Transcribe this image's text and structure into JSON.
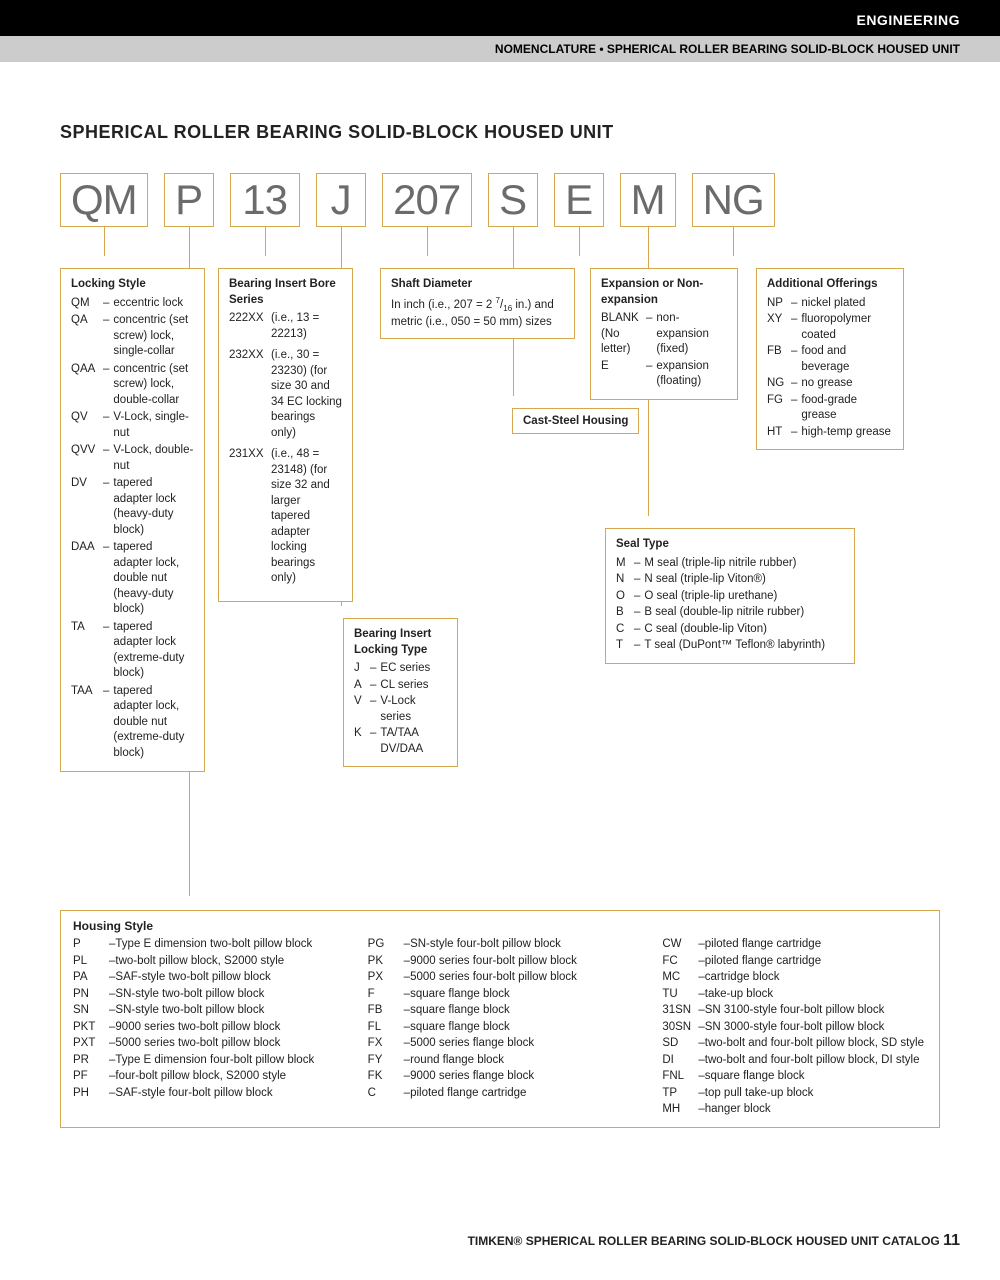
{
  "header": {
    "section": "ENGINEERING",
    "subtitle": "NOMENCLATURE • SPHERICAL ROLLER BEARING SOLID-BLOCK HOUSED UNIT"
  },
  "title": "SPHERICAL ROLLER BEARING SOLID-BLOCK HOUSED UNIT",
  "codes": [
    "QM",
    "P",
    "13",
    "J",
    "207",
    "S",
    "E",
    "M",
    "NG"
  ],
  "lockingStyle": {
    "heading": "Locking Style",
    "items": [
      {
        "c": "QM",
        "d": "eccentric lock"
      },
      {
        "c": "QA",
        "d": "concentric (set screw) lock, single-collar"
      },
      {
        "c": "QAA",
        "d": "concentric (set screw) lock, double-collar"
      },
      {
        "c": "QV",
        "d": "V-Lock, single-nut"
      },
      {
        "c": "QVV",
        "d": "V-Lock, double-nut"
      },
      {
        "c": "DV",
        "d": "tapered adapter lock (heavy-duty block)"
      },
      {
        "c": "DAA",
        "d": "tapered adapter lock, double nut (heavy-duty block)"
      },
      {
        "c": "TA",
        "d": "tapered adapter lock (extreme-duty block)"
      },
      {
        "c": "TAA",
        "d": "tapered adapter lock, double nut (extreme-duty block)"
      }
    ]
  },
  "bearingInsert": {
    "heading": "Bearing Insert Bore Series",
    "items": [
      {
        "c": "222XX",
        "d": "(i.e., 13 = 22213)"
      },
      {
        "c": "232XX",
        "d": "(i.e., 30 = 23230) (for size 30 and 34 EC locking bearings only)"
      },
      {
        "c": "231XX",
        "d": "(i.e., 48 = 23148) (for size 32 and larger tapered adapter locking bearings only)"
      }
    ]
  },
  "lockingType": {
    "heading": "Bearing Insert Locking Type",
    "items": [
      {
        "c": "J",
        "d": "EC series"
      },
      {
        "c": "A",
        "d": "CL series"
      },
      {
        "c": "V",
        "d": "V-Lock series"
      },
      {
        "c": "K",
        "d": "TA/TAA DV/DAA"
      }
    ]
  },
  "shaftDiameter": {
    "heading": "Shaft Diameter",
    "text1": "In inch (i.e., 207 = 2 ",
    "text2": " in.) and metric (i.e., 050 = 50 mm) sizes"
  },
  "castSteel": "Cast-Steel Housing",
  "expansion": {
    "heading": "Expansion or Non-expansion",
    "items": [
      {
        "c": "BLANK (No letter)",
        "d": "non-expansion (fixed)"
      },
      {
        "c": "E",
        "d": "expansion (floating)"
      }
    ]
  },
  "sealType": {
    "heading": "Seal Type",
    "items": [
      {
        "c": "M",
        "d": "M seal (triple-lip nitrile rubber)"
      },
      {
        "c": "N",
        "d": "N seal (triple-lip Viton®)"
      },
      {
        "c": "O",
        "d": "O seal (triple-lip urethane)"
      },
      {
        "c": "B",
        "d": "B seal (double-lip nitrile rubber)"
      },
      {
        "c": "C",
        "d": "C seal (double-lip Viton)"
      },
      {
        "c": "T",
        "d": "T seal (DuPont™ Teflon® labyrinth)"
      }
    ]
  },
  "additional": {
    "heading": "Additional Offerings",
    "items": [
      {
        "c": "NP",
        "d": "nickel plated"
      },
      {
        "c": "XY",
        "d": "fluoropolymer coated"
      },
      {
        "c": "FB",
        "d": "food and beverage"
      },
      {
        "c": "NG",
        "d": "no grease"
      },
      {
        "c": "FG",
        "d": "food-grade grease"
      },
      {
        "c": "HT",
        "d": "high-temp grease"
      }
    ]
  },
  "housing": {
    "heading": "Housing Style",
    "col1": [
      {
        "c": "P",
        "d": "Type E dimension two-bolt pillow block"
      },
      {
        "c": "PL",
        "d": "two-bolt pillow block, S2000 style"
      },
      {
        "c": "PA",
        "d": "SAF-style two-bolt pillow block"
      },
      {
        "c": "PN",
        "d": "SN-style two-bolt pillow block"
      },
      {
        "c": "SN",
        "d": "SN-style two-bolt pillow block"
      },
      {
        "c": "PKT",
        "d": "9000 series two-bolt pillow block"
      },
      {
        "c": "PXT",
        "d": "5000 series two-bolt pillow block"
      },
      {
        "c": "PR",
        "d": "Type E dimension four-bolt pillow block"
      },
      {
        "c": "PF",
        "d": "four-bolt pillow block, S2000 style"
      },
      {
        "c": "PH",
        "d": "SAF-style four-bolt pillow block"
      }
    ],
    "col2": [
      {
        "c": "PG",
        "d": "SN-style four-bolt pillow block"
      },
      {
        "c": "PK",
        "d": "9000 series four-bolt pillow block"
      },
      {
        "c": "PX",
        "d": "5000 series four-bolt pillow block"
      },
      {
        "c": "F",
        "d": "square flange block"
      },
      {
        "c": "FB",
        "d": "square flange block"
      },
      {
        "c": "FL",
        "d": "square flange block"
      },
      {
        "c": "FX",
        "d": "5000 series flange block"
      },
      {
        "c": "FY",
        "d": "round flange block"
      },
      {
        "c": "FK",
        "d": "9000 series flange block"
      },
      {
        "c": "C",
        "d": "piloted flange cartridge"
      }
    ],
    "col3": [
      {
        "c": "CW",
        "d": "piloted flange cartridge"
      },
      {
        "c": "FC",
        "d": "piloted flange cartridge"
      },
      {
        "c": "MC",
        "d": "cartridge block"
      },
      {
        "c": "TU",
        "d": "take-up block"
      },
      {
        "c": "31SN",
        "d": "SN 3100-style four-bolt pillow block"
      },
      {
        "c": "30SN",
        "d": "SN 3000-style four-bolt pillow block"
      },
      {
        "c": "SD",
        "d": "two-bolt and four-bolt pillow block, SD style"
      },
      {
        "c": "DI",
        "d": "two-bolt and four-bolt pillow block, DI style"
      },
      {
        "c": "FNL",
        "d": "square flange block"
      },
      {
        "c": "TP",
        "d": "top pull take-up block"
      },
      {
        "c": "MH",
        "d": "hanger block"
      }
    ]
  },
  "footer": {
    "text": "TIMKEN® SPHERICAL ROLLER BEARING SOLID-BLOCK HOUSED UNIT CATALOG",
    "page": "11"
  },
  "colors": {
    "accent": "#d5a74f",
    "codeText": "#6b6b6b"
  }
}
